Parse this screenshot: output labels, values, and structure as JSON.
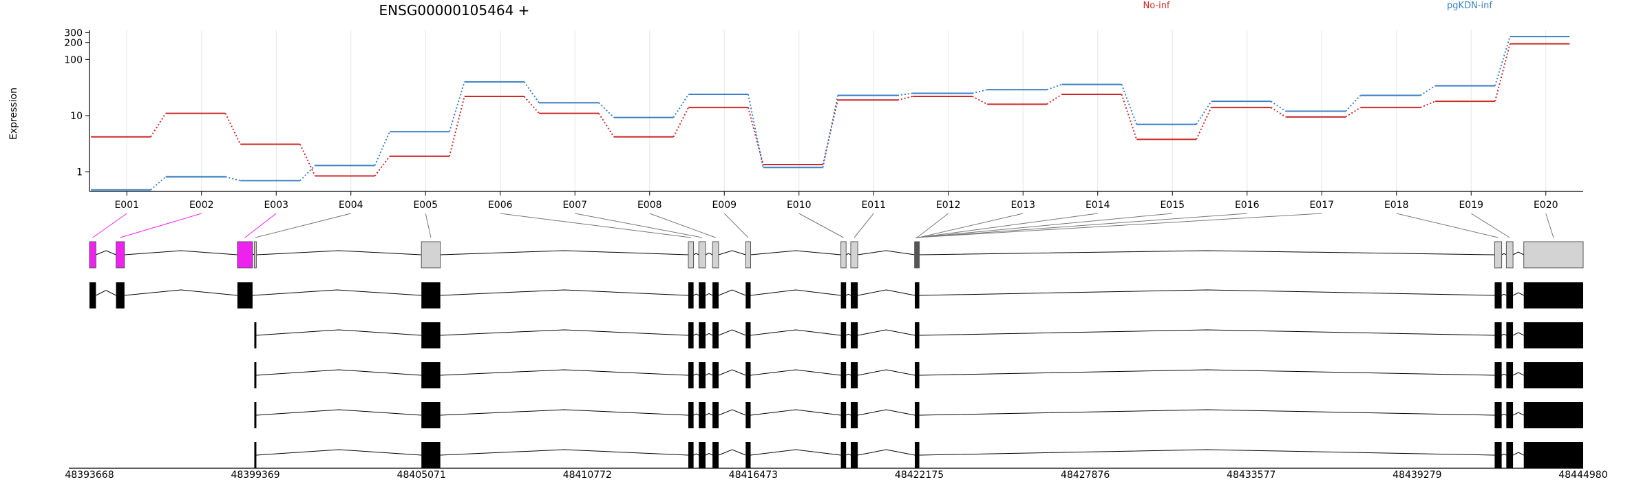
{
  "chart_data": {
    "type": "line",
    "title": "ENSG00000105464 +",
    "ylabel": "Expression",
    "y_scale": "log",
    "ylim": [
      0.45,
      330
    ],
    "y_ticks": [
      "1",
      "10",
      "100",
      "200",
      "300"
    ],
    "y_tick_values": [
      1,
      10,
      100,
      200,
      300
    ],
    "categories": [
      "E001",
      "E002",
      "E003",
      "E004",
      "E005",
      "E006",
      "E007",
      "E008",
      "E009",
      "E010",
      "E011",
      "E012",
      "E013",
      "E014",
      "E015",
      "E016",
      "E017",
      "E018",
      "E019",
      "E020"
    ],
    "series": [
      {
        "name": "No-inf",
        "color": "#cc2a2a",
        "values": [
          4.2,
          11,
          3.1,
          0.85,
          1.9,
          22,
          11,
          4.2,
          14,
          1.35,
          19,
          22,
          16,
          24,
          3.8,
          14,
          9.5,
          14,
          18,
          190
        ]
      },
      {
        "name": "pgKDN-inf",
        "color": "#3a7fc4",
        "values": [
          0.48,
          0.82,
          0.7,
          1.3,
          5.2,
          40,
          17,
          9.3,
          24,
          1.2,
          23,
          25,
          29,
          36,
          7,
          18,
          12,
          23,
          34,
          255
        ]
      }
    ],
    "grid": true,
    "legend": "top"
  },
  "gene_model": {
    "exon_colors": {
      "highlight": "#ee22ee",
      "normal": "#d3d3d3",
      "transcript": "#000000"
    },
    "highlighted_exons": [
      "E001",
      "E002",
      "E003"
    ],
    "genomic_axis": {
      "labels": [
        "48393668",
        "48399369",
        "48405071",
        "48410772",
        "48416473",
        "48422175",
        "48427876",
        "48433577",
        "48439279",
        "48444980"
      ],
      "values": [
        48393668,
        48399369,
        48405071,
        48410772,
        48416473,
        48422175,
        48427876,
        48433577,
        48439279,
        48444980
      ]
    },
    "exon_spans": [
      [
        48393668,
        48393890
      ],
      [
        48394580,
        48394870
      ],
      [
        48398750,
        48399270
      ],
      [
        48399330,
        48399400
      ],
      [
        48405070,
        48405720
      ],
      [
        48414240,
        48414420
      ],
      [
        48414600,
        48414830
      ],
      [
        48415070,
        48415280
      ],
      [
        48416210,
        48416380
      ],
      [
        48419480,
        48419660
      ],
      [
        48419820,
        48420060
      ],
      [
        48422020,
        48422175
      ],
      [
        48441940,
        48442180
      ],
      [
        48442340,
        48442570
      ],
      [
        48442940,
        48444980
      ]
    ],
    "exon_ids_per_span": [
      [
        "E001"
      ],
      [
        "E002"
      ],
      [
        "E003"
      ],
      [
        "E004"
      ],
      [
        "E005"
      ],
      [
        "E006"
      ],
      [
        "E007"
      ],
      [
        "E008"
      ],
      [
        "E009"
      ],
      [
        "E010"
      ],
      [
        "E011"
      ],
      [
        "E012"
      ],
      [
        "E018"
      ],
      [
        "E019"
      ],
      [
        "E020"
      ]
    ],
    "thin_exon_bins": [
      [
        48422150,
        48422175
      ],
      [
        48422120,
        48422150
      ],
      [
        48422090,
        48422120
      ],
      [
        48422060,
        48422090
      ],
      [
        48422030,
        48422060
      ],
      [
        48422000,
        48422030
      ]
    ],
    "thin_exon_ids": [
      "E013",
      "E014",
      "E015",
      "E016",
      "E017",
      "E012b"
    ],
    "transcripts": [
      {
        "exon_spans": [
          [
            48393668,
            48393890
          ],
          [
            48394580,
            48394870
          ],
          [
            48398750,
            48399270
          ],
          [
            48405070,
            48405720
          ],
          [
            48414240,
            48414420
          ],
          [
            48414600,
            48414830
          ],
          [
            48415070,
            48415280
          ],
          [
            48416210,
            48416380
          ],
          [
            48419480,
            48419660
          ],
          [
            48419820,
            48420060
          ],
          [
            48422020,
            48422175
          ],
          [
            48441940,
            48442180
          ],
          [
            48442340,
            48442570
          ],
          [
            48442940,
            48444980
          ]
        ]
      },
      {
        "exon_spans": [
          [
            48399330,
            48399400
          ],
          [
            48405070,
            48405720
          ],
          [
            48414240,
            48414420
          ],
          [
            48414600,
            48414830
          ],
          [
            48415070,
            48415280
          ],
          [
            48416210,
            48416380
          ],
          [
            48419480,
            48419660
          ],
          [
            48419820,
            48420060
          ],
          [
            48422020,
            48422175
          ],
          [
            48441940,
            48442180
          ],
          [
            48442340,
            48442570
          ],
          [
            48442940,
            48444980
          ]
        ]
      },
      {
        "exon_spans": [
          [
            48399330,
            48399400
          ],
          [
            48405070,
            48405720
          ],
          [
            48414240,
            48414420
          ],
          [
            48414600,
            48414830
          ],
          [
            48415070,
            48415280
          ],
          [
            48416210,
            48416380
          ],
          [
            48419480,
            48419660
          ],
          [
            48419820,
            48420060
          ],
          [
            48422020,
            48422175
          ],
          [
            48441940,
            48442180
          ],
          [
            48442340,
            48442570
          ],
          [
            48442940,
            48444980
          ]
        ]
      },
      {
        "exon_spans": [
          [
            48399330,
            48399400
          ],
          [
            48405070,
            48405720
          ],
          [
            48414240,
            48414420
          ],
          [
            48414600,
            48414830
          ],
          [
            48415070,
            48415280
          ],
          [
            48416210,
            48416380
          ],
          [
            48419480,
            48419660
          ],
          [
            48419820,
            48420060
          ],
          [
            48422020,
            48422175
          ],
          [
            48441940,
            48442180
          ],
          [
            48442340,
            48442570
          ],
          [
            48442940,
            48444980
          ]
        ]
      },
      {
        "exon_spans": [
          [
            48399330,
            48399400
          ],
          [
            48405070,
            48405720
          ],
          [
            48414240,
            48414420
          ],
          [
            48414600,
            48414830
          ],
          [
            48415070,
            48415280
          ],
          [
            48416210,
            48416380
          ],
          [
            48419480,
            48419660
          ],
          [
            48419820,
            48420060
          ],
          [
            48422020,
            48422175
          ],
          [
            48441940,
            48442180
          ],
          [
            48442340,
            48442570
          ],
          [
            48442940,
            48444980
          ]
        ]
      }
    ]
  }
}
